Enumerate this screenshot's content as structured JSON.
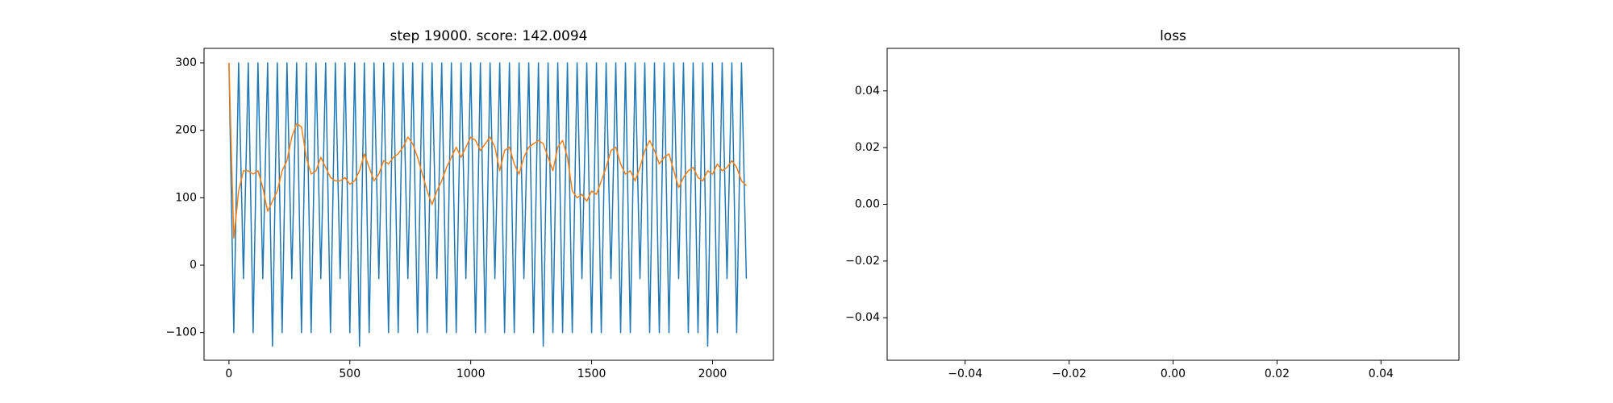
{
  "chart_data": [
    {
      "type": "line",
      "title": "step 19000. score: 142.0094",
      "x": [
        0,
        20,
        40,
        60,
        80,
        100,
        120,
        140,
        160,
        180,
        200,
        220,
        240,
        260,
        280,
        300,
        320,
        340,
        360,
        380,
        400,
        420,
        440,
        460,
        480,
        500,
        520,
        540,
        560,
        580,
        600,
        620,
        640,
        660,
        680,
        700,
        720,
        740,
        760,
        780,
        800,
        820,
        840,
        860,
        880,
        900,
        920,
        940,
        960,
        980,
        1000,
        1020,
        1040,
        1060,
        1080,
        1100,
        1120,
        1140,
        1160,
        1180,
        1200,
        1220,
        1240,
        1260,
        1280,
        1300,
        1320,
        1340,
        1360,
        1380,
        1400,
        1420,
        1440,
        1460,
        1480,
        1500,
        1520,
        1540,
        1560,
        1580,
        1600,
        1620,
        1640,
        1660,
        1680,
        1700,
        1720,
        1740,
        1760,
        1780,
        1800,
        1820,
        1840,
        1860,
        1880,
        1900,
        1920,
        1940,
        1960,
        1980,
        2000,
        2020,
        2040,
        2060,
        2080,
        2100,
        2120,
        2140
      ],
      "series": [
        {
          "color": "#1f77b4",
          "values": [
            300,
            -100,
            300,
            -20,
            300,
            -100,
            300,
            -20,
            300,
            -120,
            300,
            -100,
            300,
            -20,
            300,
            -100,
            300,
            -100,
            300,
            -20,
            300,
            -100,
            300,
            -20,
            300,
            -100,
            300,
            -120,
            300,
            -100,
            300,
            -20,
            300,
            -100,
            300,
            -100,
            300,
            -20,
            300,
            -100,
            300,
            -100,
            300,
            -20,
            300,
            -100,
            300,
            -100,
            300,
            -20,
            300,
            -100,
            300,
            -100,
            300,
            -20,
            300,
            -100,
            300,
            -100,
            300,
            -20,
            300,
            -100,
            300,
            -120,
            300,
            -100,
            300,
            -100,
            300,
            -100,
            300,
            -20,
            300,
            -100,
            300,
            -100,
            300,
            -20,
            300,
            -100,
            300,
            -100,
            300,
            -20,
            300,
            -100,
            300,
            -100,
            300,
            -100,
            300,
            -20,
            300,
            -100,
            300,
            -100,
            300,
            -120,
            300,
            -100,
            300,
            -20,
            300,
            -100,
            300,
            -20
          ]
        },
        {
          "color": "#ff7f0e",
          "values": [
            300,
            40,
            110,
            140,
            140,
            135,
            140,
            115,
            80,
            95,
            110,
            140,
            155,
            190,
            210,
            205,
            160,
            135,
            140,
            160,
            145,
            130,
            125,
            125,
            130,
            120,
            125,
            140,
            165,
            145,
            125,
            135,
            155,
            150,
            160,
            165,
            175,
            190,
            180,
            160,
            135,
            110,
            90,
            110,
            125,
            145,
            160,
            175,
            160,
            175,
            190,
            185,
            170,
            180,
            190,
            175,
            140,
            170,
            175,
            150,
            135,
            160,
            175,
            180,
            185,
            180,
            160,
            140,
            175,
            185,
            160,
            110,
            100,
            105,
            95,
            110,
            105,
            125,
            145,
            170,
            175,
            150,
            135,
            140,
            125,
            145,
            170,
            185,
            170,
            150,
            160,
            165,
            140,
            115,
            130,
            140,
            145,
            130,
            125,
            140,
            135,
            150,
            140,
            145,
            155,
            145,
            125,
            118
          ]
        }
      ],
      "xlim": [
        -103,
        2252
      ],
      "ylim": [
        -141,
        321.5
      ],
      "xticks": [
        0,
        500,
        1000,
        1500,
        2000
      ],
      "yticks": [
        {
          "value": -100,
          "label": "−100"
        },
        0,
        100,
        200,
        300
      ]
    },
    {
      "type": "line",
      "title": "loss",
      "x": [],
      "series": [],
      "xlim": [
        -0.055,
        0.055
      ],
      "ylim": [
        -0.055,
        0.055
      ],
      "xticks": [
        {
          "value": -0.04,
          "label": "−0.04"
        },
        {
          "value": -0.02,
          "label": "−0.02"
        },
        {
          "value": 0,
          "label": "0.00"
        },
        {
          "value": 0.02,
          "label": "0.02"
        },
        {
          "value": 0.04,
          "label": "0.04"
        }
      ],
      "yticks": [
        {
          "value": -0.04,
          "label": "−0.04"
        },
        {
          "value": -0.02,
          "label": "−0.02"
        },
        {
          "value": 0,
          "label": "0.00"
        },
        {
          "value": 0.02,
          "label": "0.02"
        },
        {
          "value": 0.04,
          "label": "0.04"
        }
      ]
    }
  ]
}
